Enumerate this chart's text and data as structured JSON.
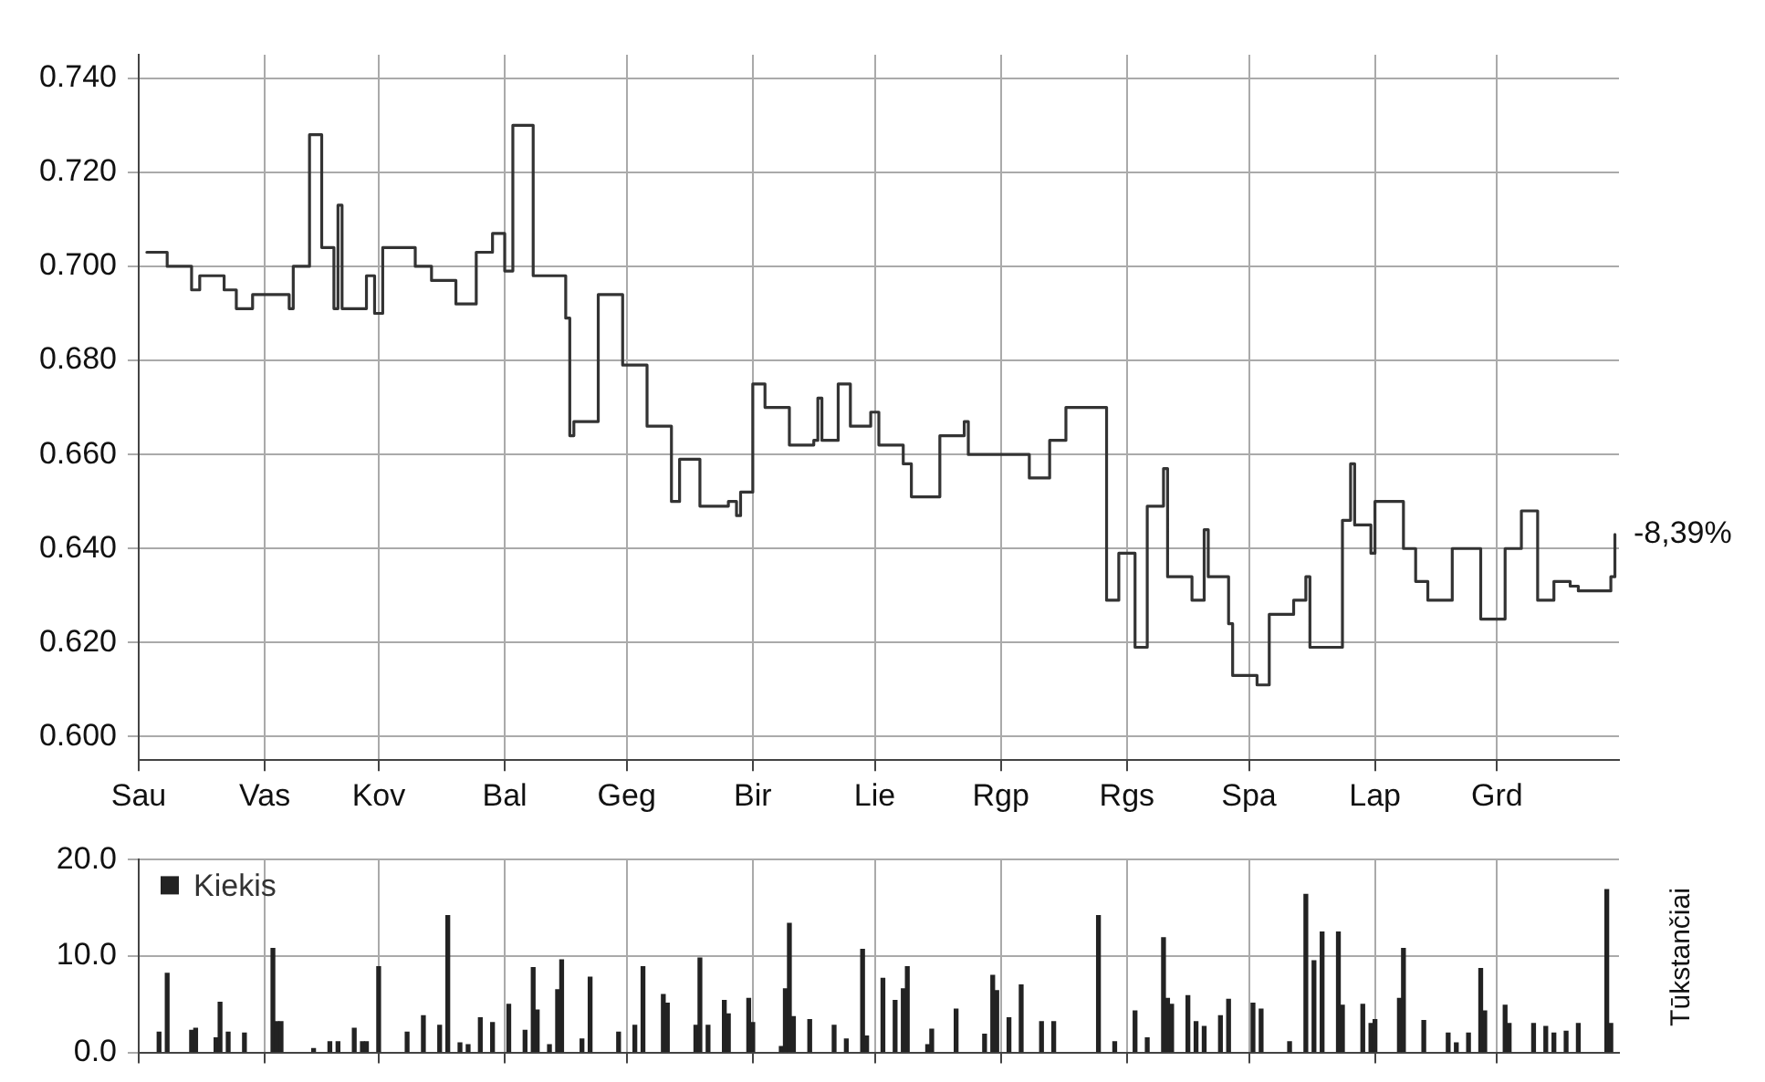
{
  "chart_data": [
    {
      "type": "step",
      "categories": [
        "Sau",
        null,
        null,
        null,
        null,
        null,
        null,
        null,
        null,
        null,
        null,
        null,
        null,
        null,
        null,
        null,
        null,
        null,
        null,
        null,
        null,
        null,
        null,
        null,
        null,
        null,
        null,
        null,
        null,
        null,
        null,
        "Vas",
        null,
        null,
        null,
        null,
        null,
        null,
        null,
        null,
        null,
        null,
        null,
        null,
        null,
        null,
        null,
        null,
        null,
        null,
        null,
        null,
        null,
        null,
        null,
        null,
        null,
        null,
        null,
        "Kov",
        null,
        null,
        null,
        null,
        null,
        null,
        null,
        null,
        null,
        null,
        null,
        null,
        null,
        null,
        null,
        null,
        null,
        null,
        null,
        null,
        null,
        null,
        null,
        null,
        null,
        null,
        null,
        null,
        null,
        null,
        "Bal",
        null,
        null,
        null,
        null,
        null,
        null,
        null,
        null,
        null,
        null,
        null,
        null,
        null,
        null,
        null,
        null,
        null,
        null,
        null,
        null,
        null,
        null,
        null,
        null,
        null,
        null,
        null,
        null,
        null,
        "Geg",
        null,
        null,
        null,
        null,
        null,
        null,
        null,
        null,
        null,
        null,
        null,
        null,
        null,
        null,
        null,
        null,
        null,
        null,
        null,
        null,
        null,
        null,
        null,
        null,
        null,
        null,
        null,
        null,
        null,
        null,
        "Bir",
        null,
        null,
        null,
        null,
        null,
        null,
        null,
        null,
        null,
        null,
        null,
        null,
        null,
        null,
        null,
        null,
        null,
        null,
        null,
        null,
        null,
        null,
        null,
        null,
        null,
        null,
        null,
        null,
        null,
        "Lie",
        null,
        null,
        null,
        null,
        null,
        null,
        null,
        null,
        null,
        null,
        null,
        null,
        null,
        null,
        null,
        null,
        null,
        null,
        null,
        null,
        null,
        null,
        null,
        null,
        null,
        null,
        null,
        null,
        null,
        null,
        "Rgp",
        null,
        null,
        null,
        null,
        null,
        null,
        null,
        null,
        null,
        null,
        null,
        null,
        null,
        null,
        null,
        null,
        null,
        null,
        null,
        null,
        null,
        null,
        null,
        null,
        null,
        null,
        null,
        null,
        null,
        null,
        "Rgs",
        null,
        null,
        null,
        null,
        null,
        null,
        null,
        null,
        null,
        null,
        null,
        null,
        null,
        null,
        null,
        null,
        null,
        null,
        null,
        null,
        null,
        null,
        null,
        null,
        null,
        null,
        null,
        null,
        null,
        "Spa",
        null,
        null,
        null,
        null,
        null,
        null,
        null,
        null,
        null,
        null,
        null,
        null,
        null,
        null,
        null,
        null,
        null,
        null,
        null,
        null,
        null,
        null,
        null,
        null,
        null,
        null,
        null,
        null,
        null,
        null,
        "Lap",
        null,
        null,
        null,
        null,
        null,
        null,
        null,
        null,
        null,
        null,
        null,
        null,
        null,
        null,
        null,
        null,
        null,
        null,
        null,
        null,
        null,
        null,
        null,
        null,
        null,
        null,
        null,
        null,
        null,
        "Grd",
        null,
        null,
        null,
        null,
        null,
        null,
        null,
        null,
        null,
        null,
        null,
        null,
        null,
        null,
        null,
        null,
        null,
        null,
        null,
        null,
        null,
        null,
        null,
        null,
        null,
        null,
        null,
        null,
        null,
        null
      ],
      "series": [
        {
          "color": "#333333",
          "values": [
            null,
            null,
            0.703,
            0.703,
            0.703,
            0.703,
            0.703,
            0.7,
            0.7,
            0.7,
            0.7,
            0.7,
            0.7,
            0.695,
            0.695,
            0.698,
            0.698,
            0.698,
            0.698,
            0.698,
            0.698,
            0.695,
            0.695,
            0.695,
            0.691,
            0.691,
            0.691,
            0.691,
            0.694,
            0.694,
            0.694,
            0.694,
            0.694,
            0.694,
            0.694,
            0.694,
            0.694,
            0.691,
            0.7,
            0.7,
            0.7,
            0.7,
            0.728,
            0.728,
            0.728,
            0.704,
            0.704,
            0.704,
            0.691,
            0.713,
            0.691,
            0.691,
            0.691,
            0.691,
            0.691,
            0.691,
            0.698,
            0.698,
            0.69,
            0.69,
            0.704,
            0.704,
            0.704,
            0.704,
            0.704,
            0.704,
            0.704,
            0.704,
            0.7,
            0.7,
            0.7,
            0.7,
            0.697,
            0.697,
            0.697,
            0.697,
            0.697,
            0.697,
            0.692,
            0.692,
            0.692,
            0.692,
            0.692,
            0.703,
            0.703,
            0.703,
            0.703,
            0.707,
            0.707,
            0.707,
            0.699,
            0.699,
            0.73,
            0.73,
            0.73,
            0.73,
            0.73,
            0.698,
            0.698,
            0.698,
            0.698,
            0.698,
            0.698,
            0.698,
            0.698,
            0.689,
            0.664,
            0.667,
            0.667,
            0.667,
            0.667,
            0.667,
            0.667,
            0.694,
            0.694,
            0.694,
            0.694,
            0.694,
            0.694,
            0.679,
            0.679,
            0.679,
            0.679,
            0.679,
            0.679,
            0.666,
            0.666,
            0.666,
            0.666,
            0.666,
            0.666,
            0.65,
            0.65,
            0.659,
            0.659,
            0.659,
            0.659,
            0.659,
            0.649,
            0.649,
            0.649,
            0.649,
            0.649,
            0.649,
            0.649,
            0.65,
            0.65,
            0.647,
            0.652,
            0.652,
            0.652,
            0.675,
            0.675,
            0.675,
            0.67,
            0.67,
            0.67,
            0.67,
            0.67,
            0.67,
            0.662,
            0.662,
            0.662,
            0.662,
            0.662,
            0.662,
            0.663,
            0.672,
            0.663,
            0.663,
            0.663,
            0.663,
            0.675,
            0.675,
            0.675,
            0.666,
            0.666,
            0.666,
            0.666,
            0.666,
            0.669,
            0.669,
            0.662,
            0.662,
            0.662,
            0.662,
            0.662,
            0.662,
            0.658,
            0.658,
            0.651,
            0.651,
            0.651,
            0.651,
            0.651,
            0.651,
            0.651,
            0.664,
            0.664,
            0.664,
            0.664,
            0.664,
            0.664,
            0.667,
            0.66,
            0.66,
            0.66,
            0.66,
            0.66,
            0.66,
            0.66,
            0.66,
            0.66,
            0.66,
            0.66,
            0.66,
            0.66,
            0.66,
            0.66,
            0.655,
            0.655,
            0.655,
            0.655,
            0.655,
            0.663,
            0.663,
            0.663,
            0.663,
            0.67,
            0.67,
            0.67,
            0.67,
            0.67,
            0.67,
            0.67,
            0.67,
            0.67,
            0.67,
            0.629,
            0.629,
            0.629,
            0.639,
            0.639,
            0.639,
            0.639,
            0.619,
            0.619,
            0.619,
            0.649,
            0.649,
            0.649,
            0.649,
            0.657,
            0.634,
            0.634,
            0.634,
            0.634,
            0.634,
            0.634,
            0.629,
            0.629,
            0.629,
            0.644,
            0.634,
            0.634,
            0.634,
            0.634,
            0.634,
            0.624,
            0.613,
            0.613,
            0.613,
            0.613,
            0.613,
            0.613,
            0.611,
            0.611,
            0.611,
            0.626,
            0.626,
            0.626,
            0.626,
            0.626,
            0.626,
            0.629,
            0.629,
            0.629,
            0.634,
            0.619,
            0.619,
            0.619,
            0.619,
            0.619,
            0.619,
            0.619,
            0.619,
            0.646,
            0.646,
            0.658,
            0.645,
            0.645,
            0.645,
            0.645,
            0.639,
            0.65,
            0.65,
            0.65,
            0.65,
            0.65,
            0.65,
            0.65,
            0.64,
            0.64,
            0.64,
            0.633,
            0.633,
            0.633,
            0.629,
            0.629,
            0.629,
            0.629,
            0.629,
            0.629,
            0.64,
            0.64,
            0.64,
            0.64,
            0.64,
            0.64,
            0.64,
            0.625,
            0.625,
            0.625,
            0.625,
            0.625,
            0.625,
            0.64,
            0.64,
            0.64,
            0.64,
            0.648,
            0.648,
            0.648,
            0.648,
            0.629,
            0.629,
            0.629,
            0.629,
            0.633,
            0.633,
            0.633,
            0.633,
            0.632,
            0.632,
            0.631,
            0.631,
            0.631,
            0.631,
            0.631,
            0.631,
            0.631,
            0.631,
            0.634,
            0.643,
            null
          ]
        }
      ],
      "ylim": [
        0.595,
        0.745
      ],
      "yticks": [
        {
          "value": 0.6,
          "label": "0.600"
        },
        {
          "value": 0.62,
          "label": "0.620"
        },
        {
          "value": 0.64,
          "label": "0.640"
        },
        {
          "value": 0.66,
          "label": "0.660"
        },
        {
          "value": 0.68,
          "label": "0.680"
        },
        {
          "value": 0.7,
          "label": "0.700"
        },
        {
          "value": 0.72,
          "label": "0.720"
        },
        {
          "value": 0.74,
          "label": "0.740"
        }
      ],
      "grid": true,
      "line_style": "solid",
      "marker": "none",
      "annotations": [
        "-8,39%"
      ]
    },
    {
      "type": "bar",
      "ylabel": "Tūkstančiai",
      "legend": "top left",
      "tick_labels": "y",
      "grid": true,
      "categories": [
        null,
        null,
        null,
        null,
        null,
        null,
        null,
        null,
        null,
        null,
        null,
        null,
        null,
        null,
        null,
        null,
        null,
        null,
        null,
        null,
        null,
        null,
        null,
        null,
        null,
        null,
        null,
        null,
        null,
        null,
        null,
        null,
        null,
        null,
        null,
        null,
        null,
        null,
        null,
        null,
        null,
        null,
        null,
        null,
        null,
        null,
        null,
        null,
        null,
        null,
        null,
        null,
        null,
        null,
        null,
        null,
        null,
        null,
        null,
        null,
        null,
        null,
        null,
        null,
        null,
        null,
        null,
        null,
        null,
        null,
        null,
        null,
        null,
        null,
        null,
        null,
        null,
        null,
        null,
        null,
        null,
        null,
        null,
        null,
        null,
        null,
        null,
        null,
        null,
        null,
        null,
        null,
        null,
        null,
        null,
        null,
        null,
        null,
        null,
        null,
        null,
        null,
        null,
        null,
        null,
        null,
        null,
        null,
        null,
        null,
        null,
        null,
        null,
        null,
        null,
        null,
        null,
        null,
        null,
        null,
        null,
        null,
        null,
        null,
        null,
        null,
        null,
        null,
        null,
        null,
        null,
        null,
        null,
        null,
        null,
        null,
        null,
        null,
        null,
        null,
        null,
        null,
        null,
        null,
        null,
        null,
        null,
        null,
        null,
        null,
        null,
        null,
        null,
        null,
        null,
        null,
        null,
        null,
        null,
        null,
        null,
        null,
        null,
        null,
        null,
        null,
        null,
        null,
        null,
        null,
        null,
        null,
        null,
        null,
        null,
        null,
        null,
        null,
        null,
        null,
        null,
        null,
        null,
        null,
        null,
        null,
        null,
        null,
        null,
        null,
        null,
        null,
        null,
        null,
        null,
        null,
        null,
        null,
        null,
        null,
        null,
        null,
        null,
        null,
        null,
        null,
        null,
        null,
        null,
        null,
        null,
        null,
        null,
        null,
        null,
        null,
        null,
        null,
        null,
        null,
        null,
        null,
        null,
        null,
        null,
        null,
        null,
        null,
        null,
        null,
        null,
        null,
        null,
        null,
        null,
        null,
        null,
        null,
        null,
        null,
        null,
        null,
        null,
        null,
        null,
        null,
        null,
        null,
        null,
        null,
        null,
        null,
        null,
        null,
        null,
        null,
        null,
        null,
        null,
        null,
        null,
        null,
        null,
        null,
        null,
        null,
        null,
        null,
        null,
        null,
        null,
        null,
        null,
        null,
        null,
        null,
        null,
        null,
        null,
        null,
        null,
        null,
        null,
        null,
        null,
        null,
        null,
        null,
        null,
        null,
        null,
        null,
        null,
        null,
        null,
        null,
        null,
        null,
        null,
        null,
        null,
        null,
        null,
        null,
        null,
        null,
        null,
        null,
        null,
        null,
        null,
        null,
        null,
        null,
        null,
        null,
        null,
        null,
        null,
        null,
        null,
        null,
        null,
        null,
        null,
        null,
        null,
        null,
        null,
        null,
        null,
        null,
        null,
        null,
        null,
        null,
        null,
        null,
        null,
        null,
        null,
        null,
        null,
        null,
        null,
        null,
        null,
        null,
        null,
        null,
        null,
        null,
        null,
        null,
        null,
        null,
        null,
        null,
        null,
        null,
        null,
        null,
        null,
        null,
        null
      ],
      "series": [
        {
          "name": "Kiekis",
          "color": "#222222",
          "values": [
            null,
            null,
            null,
            null,
            null,
            2.1,
            null,
            8.2,
            null,
            null,
            null,
            null,
            null,
            2.3,
            2.5,
            null,
            null,
            null,
            null,
            1.5,
            5.2,
            null,
            2.1,
            null,
            null,
            null,
            2.0,
            null,
            null,
            null,
            null,
            null,
            null,
            10.8,
            3.2,
            3.2,
            null,
            null,
            null,
            null,
            null,
            null,
            null,
            0.4,
            null,
            null,
            null,
            1.1,
            null,
            1.1,
            null,
            null,
            null,
            2.5,
            null,
            1.1,
            1.1,
            null,
            null,
            8.9,
            null,
            null,
            null,
            null,
            null,
            null,
            2.1,
            null,
            null,
            null,
            3.8,
            null,
            null,
            null,
            2.8,
            null,
            14.2,
            null,
            null,
            1.0,
            null,
            0.8,
            null,
            null,
            3.6,
            null,
            null,
            3.1,
            null,
            null,
            null,
            5.0,
            null,
            null,
            null,
            2.3,
            null,
            8.8,
            4.4,
            null,
            null,
            0.8,
            null,
            6.5,
            9.6,
            null,
            null,
            null,
            null,
            1.4,
            null,
            7.8,
            null,
            null,
            null,
            null,
            null,
            null,
            2.1,
            null,
            null,
            null,
            2.8,
            null,
            8.9,
            null,
            null,
            null,
            null,
            6.0,
            5.1,
            null,
            null,
            null,
            null,
            null,
            null,
            2.8,
            9.8,
            null,
            2.8,
            null,
            null,
            null,
            5.4,
            4.0,
            null,
            null,
            null,
            null,
            5.6,
            3.1,
            null,
            null,
            null,
            null,
            null,
            null,
            0.6,
            6.6,
            13.4,
            3.7,
            null,
            null,
            null,
            3.4,
            null,
            null,
            null,
            null,
            null,
            2.8,
            null,
            null,
            1.4,
            null,
            null,
            null,
            10.7,
            1.7,
            null,
            null,
            null,
            7.7,
            null,
            null,
            5.4,
            null,
            6.6,
            8.9,
            null,
            null,
            null,
            null,
            0.8,
            2.4,
            null,
            null,
            null,
            null,
            null,
            4.5,
            null,
            null,
            null,
            null,
            null,
            null,
            1.9,
            null,
            8.0,
            6.4,
            null,
            null,
            3.6,
            null,
            null,
            7.0,
            null,
            null,
            null,
            null,
            3.2,
            null,
            null,
            3.2,
            null,
            null,
            null,
            null,
            null,
            null,
            null,
            null,
            null,
            null,
            14.2,
            null,
            null,
            null,
            1.1,
            null,
            null,
            null,
            null,
            4.3,
            null,
            null,
            1.5,
            null,
            null,
            null,
            11.9,
            5.6,
            5.0,
            null,
            null,
            null,
            5.9,
            null,
            3.2,
            null,
            2.7,
            null,
            null,
            null,
            3.8,
            null,
            5.5,
            null,
            null,
            null,
            null,
            null,
            5.1,
            null,
            4.5,
            null,
            null,
            null,
            null,
            null,
            null,
            1.1,
            null,
            null,
            null,
            16.4,
            null,
            9.5,
            null,
            12.5,
            null,
            null,
            null,
            12.5,
            4.9,
            null,
            null,
            null,
            null,
            5.0,
            null,
            3.0,
            3.4,
            null,
            null,
            null,
            null,
            null,
            5.6,
            10.8,
            null,
            null,
            null,
            null,
            3.3,
            null,
            null,
            null,
            null,
            null,
            2.0,
            null,
            1.0,
            null,
            null,
            2.0,
            null,
            null,
            8.7,
            4.3,
            null,
            null,
            null,
            null,
            4.9,
            3.0,
            null,
            null,
            null,
            null,
            null,
            3.0,
            null,
            null,
            2.7,
            null,
            2.0,
            null,
            null,
            2.2,
            null,
            null,
            3.0,
            null,
            null,
            null,
            null,
            null,
            null,
            16.9,
            3.0,
            null,
            null
          ]
        }
      ],
      "ylim": [
        0,
        20
      ],
      "yticks": [
        {
          "value": 0,
          "label": "0.0"
        },
        {
          "value": 10,
          "label": "10.0"
        },
        {
          "value": 20,
          "label": "20.0"
        }
      ]
    }
  ]
}
